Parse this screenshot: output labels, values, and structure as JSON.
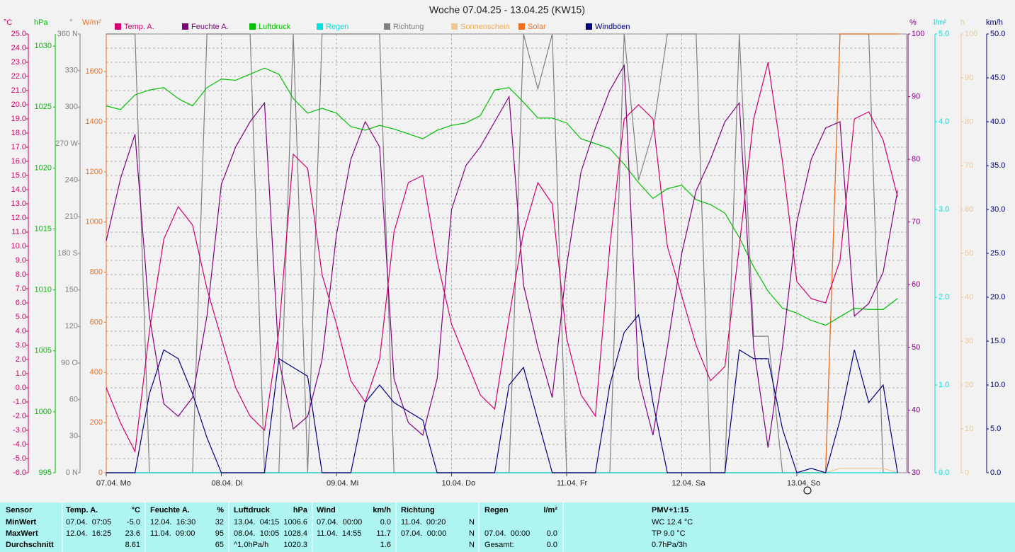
{
  "chart_data": {
    "type": "line",
    "title": "Woche 07.04.25 - 13.04.25 (KW15)",
    "grid": true,
    "categories": [
      "07.04. Mo",
      null,
      null,
      null,
      null,
      null,
      null,
      null,
      "08.04. Di",
      null,
      null,
      null,
      null,
      null,
      null,
      null,
      "09.04. Mi",
      null,
      null,
      null,
      null,
      null,
      null,
      null,
      "10.04. Do",
      null,
      null,
      null,
      null,
      null,
      null,
      null,
      "11.04. Fr",
      null,
      null,
      null,
      null,
      null,
      null,
      null,
      "12.04. Sa",
      null,
      null,
      null,
      null,
      null,
      null,
      null,
      "13.04. So",
      null,
      null,
      null,
      null,
      null,
      null,
      null
    ],
    "series": [
      {
        "name": "Temp. A.",
        "color": "#d0006f",
        "unit": "°C",
        "ylim": [
          -6,
          25
        ],
        "yticks": [
          {
            "value": -6,
            "label": "-6.0"
          },
          {
            "value": -5,
            "label": "-5.0"
          },
          {
            "value": -4,
            "label": "-4.0"
          },
          {
            "value": -3,
            "label": "-3.0"
          },
          {
            "value": -2,
            "label": "-2.0"
          },
          {
            "value": -1,
            "label": "-1.0"
          },
          {
            "value": 0,
            "label": "0.0"
          },
          {
            "value": 1,
            "label": "1.0"
          },
          {
            "value": 2,
            "label": "2.0"
          },
          {
            "value": 3,
            "label": "3.0"
          },
          {
            "value": 4,
            "label": "4.0"
          },
          {
            "value": 5,
            "label": "5.0"
          },
          {
            "value": 6,
            "label": "6.0"
          },
          {
            "value": 7,
            "label": "7.0"
          },
          {
            "value": 8,
            "label": "8.0"
          },
          {
            "value": 9,
            "label": "9.0"
          },
          {
            "value": 10,
            "label": "10.0"
          },
          {
            "value": 11,
            "label": "11.0"
          },
          {
            "value": 12,
            "label": "12.0"
          },
          {
            "value": 13,
            "label": "13.0"
          },
          {
            "value": 14,
            "label": "14.0"
          },
          {
            "value": 15,
            "label": "15.0"
          },
          {
            "value": 16,
            "label": "16.0"
          },
          {
            "value": 17,
            "label": "17.0"
          },
          {
            "value": 18,
            "label": "18.0"
          },
          {
            "value": 19,
            "label": "19.0"
          },
          {
            "value": 20,
            "label": "20.0"
          },
          {
            "value": 21,
            "label": "21.0"
          },
          {
            "value": 22,
            "label": "22.0"
          },
          {
            "value": 23,
            "label": "23.0"
          },
          {
            "value": 24,
            "label": "24.0"
          },
          {
            "value": 25,
            "label": "25.0"
          }
        ],
        "values": [
          0.0,
          -2.5,
          -4.5,
          4.0,
          10.5,
          12.8,
          11.5,
          7.0,
          3.5,
          0.0,
          -2.0,
          -3.0,
          4.0,
          16.5,
          15.5,
          8.0,
          4.5,
          0.5,
          -1.0,
          2.0,
          11.0,
          14.5,
          15.0,
          9.0,
          4.5,
          2.0,
          -0.5,
          -1.5,
          5.0,
          11.0,
          14.5,
          13.0,
          3.5,
          -0.5,
          -2.0,
          10.0,
          19.0,
          20.0,
          19.0,
          10.0,
          6.5,
          3.0,
          0.5,
          1.5,
          10.0,
          19.0,
          23.0,
          16.0,
          7.5,
          6.3,
          6.0,
          9.0,
          19.0,
          19.5,
          17.5,
          13.5
        ]
      },
      {
        "name": "Feuchte A.",
        "color": "#800080",
        "unit": "%",
        "ylim": [
          30,
          100
        ],
        "yticks": [
          30,
          40,
          50,
          60,
          70,
          80,
          90,
          100
        ],
        "values": [
          67,
          77,
          84,
          55,
          41,
          39,
          42,
          55,
          76,
          82,
          86,
          89,
          48,
          37,
          39,
          48,
          68,
          80,
          86,
          82,
          45,
          38,
          36,
          45,
          72,
          79,
          82,
          86,
          90,
          60,
          50,
          42,
          63,
          78,
          85,
          91,
          95,
          45,
          36,
          50,
          65,
          75,
          80,
          86,
          89,
          50,
          34,
          50,
          70,
          80,
          85,
          86,
          55,
          57,
          62,
          75
        ]
      },
      {
        "name": "Luftdruck",
        "color": "#00c000",
        "unit": "hPa",
        "ylim": [
          995,
          1031
        ],
        "yticks": [
          995,
          1000,
          1005,
          1010,
          1015,
          1020,
          1025,
          1030
        ],
        "values": [
          1025.1,
          1024.8,
          1026.0,
          1026.4,
          1026.6,
          1025.7,
          1025.1,
          1026.6,
          1027.3,
          1027.2,
          1027.7,
          1028.2,
          1027.7,
          1025.7,
          1024.5,
          1024.9,
          1024.5,
          1023.4,
          1023.1,
          1023.5,
          1023.2,
          1022.8,
          1022.4,
          1023.1,
          1023.5,
          1023.7,
          1024.3,
          1026.4,
          1026.6,
          1025.4,
          1024.1,
          1024.1,
          1023.7,
          1022.4,
          1022.0,
          1021.6,
          1020.3,
          1018.8,
          1017.5,
          1018.3,
          1018.6,
          1017.4,
          1017.0,
          1016.3,
          1014.3,
          1011.9,
          1009.9,
          1008.5,
          1008.1,
          1007.5,
          1007.1,
          1007.8,
          1008.5,
          1008.4,
          1008.4,
          1009.3
        ]
      },
      {
        "name": "Regen",
        "color": "#00e0e0",
        "unit": "l/m²",
        "ylim": [
          0,
          5
        ],
        "yticks": [
          {
            "value": 0,
            "label": "0.0"
          },
          {
            "value": 1,
            "label": "1.0"
          },
          {
            "value": 2,
            "label": "2.0"
          },
          {
            "value": 3,
            "label": "3.0"
          },
          {
            "value": 4,
            "label": "4.0"
          },
          {
            "value": 5,
            "label": "5.0"
          }
        ],
        "values": [
          0,
          0,
          0,
          0,
          0,
          0,
          0,
          0,
          0,
          0,
          0,
          0,
          0,
          0,
          0,
          0,
          0,
          0,
          0,
          0,
          0,
          0,
          0,
          0,
          0,
          0,
          0,
          0,
          0,
          0,
          0,
          0,
          0,
          0,
          0,
          0,
          0,
          0,
          0,
          0,
          0,
          0,
          0,
          0,
          0,
          0,
          0,
          0,
          0,
          0,
          0,
          0,
          0,
          0,
          0,
          0
        ]
      },
      {
        "name": "Richtung",
        "color": "#808080",
        "unit": "°",
        "ylim": [
          0,
          360
        ],
        "yticks": [
          {
            "value": 0,
            "label": "0 N"
          },
          30,
          60,
          {
            "value": 90,
            "label": "90 O"
          },
          120,
          150,
          {
            "value": 180,
            "label": "180 S"
          },
          210,
          240,
          {
            "value": 270,
            "label": "270 W"
          },
          300,
          330,
          {
            "value": 360,
            "label": "360 N"
          }
        ],
        "values": [
          360,
          360,
          360,
          0,
          0,
          0,
          0,
          360,
          360,
          360,
          360,
          0,
          0,
          360,
          0,
          360,
          360,
          360,
          360,
          360,
          0,
          0,
          0,
          0,
          0,
          0,
          0,
          0,
          0,
          360,
          315,
          360,
          0,
          0,
          0,
          0,
          360,
          240,
          280,
          360,
          360,
          360,
          0,
          0,
          360,
          112,
          112,
          0,
          0,
          0,
          0,
          360,
          360,
          360,
          0,
          0
        ]
      },
      {
        "name": "Sonnenschein",
        "color": "#f0c890",
        "unit": "h",
        "ylim": [
          0,
          100
        ],
        "yticks": [
          0,
          10,
          20,
          30,
          40,
          50,
          60,
          70,
          80,
          90,
          100
        ],
        "values": [
          0,
          0,
          0,
          0,
          0,
          0,
          0,
          0,
          0,
          0,
          0,
          0,
          0,
          0,
          0,
          0,
          0,
          0,
          0,
          0,
          0,
          0,
          0,
          0,
          0,
          0,
          0,
          0,
          0,
          0,
          0,
          0,
          0,
          0,
          0,
          0,
          0,
          0,
          0,
          0,
          0,
          0,
          0,
          0,
          0,
          0,
          0,
          0,
          0,
          0,
          0,
          1,
          1,
          1,
          1,
          0
        ]
      },
      {
        "name": "Solar",
        "color": "#f07020",
        "unit": "W/m²",
        "ylim": [
          0,
          1750
        ],
        "yticks": [
          0,
          200,
          400,
          600,
          800,
          1000,
          1200,
          1400,
          1600
        ],
        "values": [
          0,
          0,
          0,
          0,
          0,
          0,
          0,
          0,
          0,
          0,
          0,
          0,
          0,
          0,
          0,
          0,
          0,
          0,
          0,
          0,
          0,
          0,
          0,
          0,
          0,
          0,
          0,
          0,
          0,
          0,
          0,
          0,
          0,
          0,
          0,
          0,
          0,
          0,
          0,
          0,
          0,
          0,
          0,
          0,
          0,
          0,
          0,
          0,
          0,
          0,
          0,
          1750,
          1750,
          1750,
          1750,
          1750
        ]
      },
      {
        "name": "Windböen",
        "color": "#000080",
        "unit": "km/h",
        "ylim": [
          0,
          50
        ],
        "yticks": [
          {
            "value": 0,
            "label": "0.0"
          },
          {
            "value": 5,
            "label": "5.0"
          },
          {
            "value": 10,
            "label": "10.0"
          },
          {
            "value": 15,
            "label": "15.0"
          },
          {
            "value": 20,
            "label": "20.0"
          },
          {
            "value": 25,
            "label": "25.0"
          },
          {
            "value": 30,
            "label": "30.0"
          },
          {
            "value": 35,
            "label": "35.0"
          },
          {
            "value": 40,
            "label": "40.0"
          },
          {
            "value": 45,
            "label": "45.0"
          },
          {
            "value": 50,
            "label": "50.0"
          }
        ],
        "values": [
          0,
          0,
          0,
          9,
          14,
          13,
          9,
          4,
          0,
          0,
          0,
          0,
          13,
          12,
          11,
          0,
          0,
          0,
          8,
          10,
          8,
          7,
          6,
          0,
          0,
          0,
          0,
          0,
          10,
          12,
          6,
          0,
          0,
          0,
          0,
          10,
          16,
          18,
          8,
          0,
          0,
          0,
          0,
          0,
          14,
          13,
          13,
          5,
          0,
          0.5,
          0,
          6,
          14,
          8,
          10,
          0
        ]
      }
    ]
  },
  "stats": {
    "row_labels": [
      "Sensor",
      "MinWert",
      "MaxWert",
      "Durchschnitt"
    ],
    "columns": [
      {
        "title": "Temp. A.",
        "unit": "°C",
        "rows": [
          [
            "07.04.  07:05",
            "-5.0"
          ],
          [
            "12.04.  16:25",
            "23.6"
          ],
          [
            null,
            "8.61"
          ]
        ]
      },
      {
        "title": "Feuchte A.",
        "unit": "%",
        "rows": [
          [
            "12.04.  16:30",
            "32"
          ],
          [
            "11.04.  09:00",
            "95"
          ],
          [
            null,
            "65"
          ]
        ]
      },
      {
        "title": "Luftdruck",
        "unit": "hPa",
        "rows": [
          [
            "13.04.  04:15",
            "1006.6"
          ],
          [
            "08.04.  10:05",
            "1028.4"
          ],
          [
            "^1.0hPa/h",
            "1020.3"
          ]
        ]
      },
      {
        "title": "Wind",
        "unit": "km/h",
        "rows": [
          [
            "07.04.  00:00",
            "0.0"
          ],
          [
            "11.04.  14:55",
            "11.7"
          ],
          [
            null,
            "1.6"
          ]
        ]
      },
      {
        "title": "Richtung",
        "rows": [
          [
            "11.04.  00:20",
            "N"
          ],
          [
            "07.04.  00:00",
            "N"
          ],
          [
            null,
            "N"
          ]
        ]
      },
      {
        "title": "Regen",
        "unit": "l/m²",
        "rows": [
          [
            null,
            null
          ],
          [
            "07.04.  00:00",
            "0.0"
          ],
          [
            "Gesamt:",
            "0.0"
          ]
        ]
      }
    ],
    "pmv": {
      "title": "PMV+1:15",
      "lines": [
        "WC 12.4 °C",
        "TP 9.0 °C",
        "0.7hPa/3h"
      ]
    }
  }
}
